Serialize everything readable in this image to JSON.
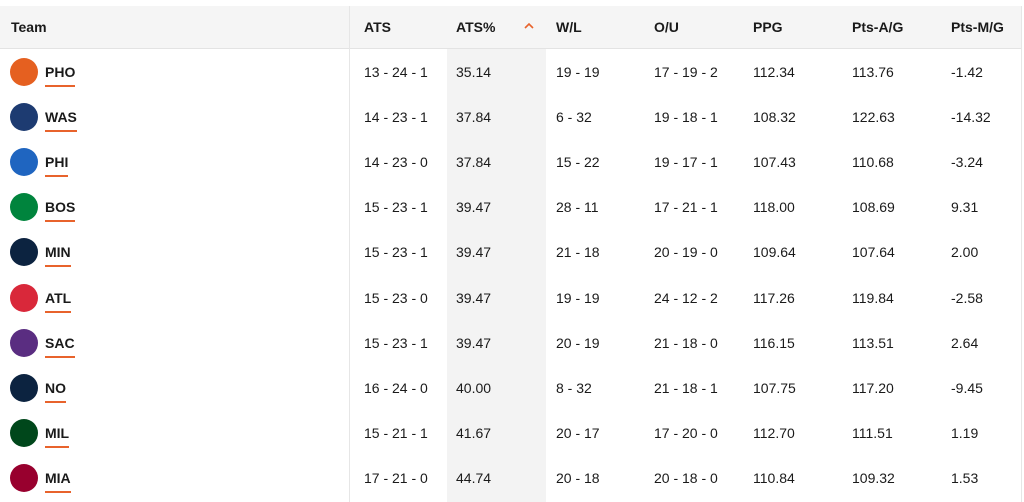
{
  "columns": {
    "team": "Team",
    "ats": "ATS",
    "ats_pct": "ATS%",
    "wl": "W/L",
    "ou": "O/U",
    "ppg": "PPG",
    "pts_a": "Pts-A/G",
    "pts_m": "Pts-M/G"
  },
  "sort": {
    "column": "ATS%",
    "direction": "ascending",
    "icon": "chevron-up-icon",
    "color": "#e8632c"
  },
  "rows": [
    {
      "team": "PHO",
      "logo_icon": "suns-logo-icon",
      "color": "#e56020",
      "ats": "13 - 24 - 1",
      "ats_pct": "35.14",
      "wl": "19 - 19",
      "ou": "17 - 19 - 2",
      "ppg": "112.34",
      "pts_a": "113.76",
      "pts_m": "-1.42"
    },
    {
      "team": "WAS",
      "logo_icon": "wizards-logo-icon",
      "color": "#1d3b71",
      "ats": "14 - 23 - 1",
      "ats_pct": "37.84",
      "wl": "6 - 32",
      "ou": "19 - 18 - 1",
      "ppg": "108.32",
      "pts_a": "122.63",
      "pts_m": "-14.32"
    },
    {
      "team": "PHI",
      "logo_icon": "76ers-logo-icon",
      "color": "#1f65c0",
      "ats": "14 - 23 - 0",
      "ats_pct": "37.84",
      "wl": "15 - 22",
      "ou": "19 - 17 - 1",
      "ppg": "107.43",
      "pts_a": "110.68",
      "pts_m": "-3.24"
    },
    {
      "team": "BOS",
      "logo_icon": "celtics-logo-icon",
      "color": "#00843d",
      "ats": "15 - 23 - 1",
      "ats_pct": "39.47",
      "wl": "28 - 11",
      "ou": "17 - 21 - 1",
      "ppg": "118.00",
      "pts_a": "108.69",
      "pts_m": "9.31"
    },
    {
      "team": "MIN",
      "logo_icon": "timberwolves-logo-icon",
      "color": "#0c2340",
      "ats": "15 - 23 - 1",
      "ats_pct": "39.47",
      "wl": "21 - 18",
      "ou": "20 - 19 - 0",
      "ppg": "109.64",
      "pts_a": "107.64",
      "pts_m": "2.00"
    },
    {
      "team": "ATL",
      "logo_icon": "hawks-logo-icon",
      "color": "#d9283a",
      "ats": "15 - 23 - 0",
      "ats_pct": "39.47",
      "wl": "19 - 19",
      "ou": "24 - 12 - 2",
      "ppg": "117.26",
      "pts_a": "119.84",
      "pts_m": "-2.58"
    },
    {
      "team": "SAC",
      "logo_icon": "kings-logo-icon",
      "color": "#5a2d81",
      "ats": "15 - 23 - 1",
      "ats_pct": "39.47",
      "wl": "20 - 19",
      "ou": "21 - 18 - 0",
      "ppg": "116.15",
      "pts_a": "113.51",
      "pts_m": "2.64"
    },
    {
      "team": "NO",
      "logo_icon": "pelicans-logo-icon",
      "color": "#0c2340",
      "ats": "16 - 24 - 0",
      "ats_pct": "40.00",
      "wl": "8 - 32",
      "ou": "21 - 18 - 1",
      "ppg": "107.75",
      "pts_a": "117.20",
      "pts_m": "-9.45"
    },
    {
      "team": "MIL",
      "logo_icon": "bucks-logo-icon",
      "color": "#00471b",
      "ats": "15 - 21 - 1",
      "ats_pct": "41.67",
      "wl": "20 - 17",
      "ou": "17 - 20 - 0",
      "ppg": "112.70",
      "pts_a": "111.51",
      "pts_m": "1.19"
    },
    {
      "team": "MIA",
      "logo_icon": "heat-logo-icon",
      "color": "#98002e",
      "ats": "17 - 21 - 0",
      "ats_pct": "44.74",
      "wl": "20 - 18",
      "ou": "20 - 18 - 0",
      "ppg": "110.84",
      "pts_a": "109.32",
      "pts_m": "1.53"
    }
  ]
}
